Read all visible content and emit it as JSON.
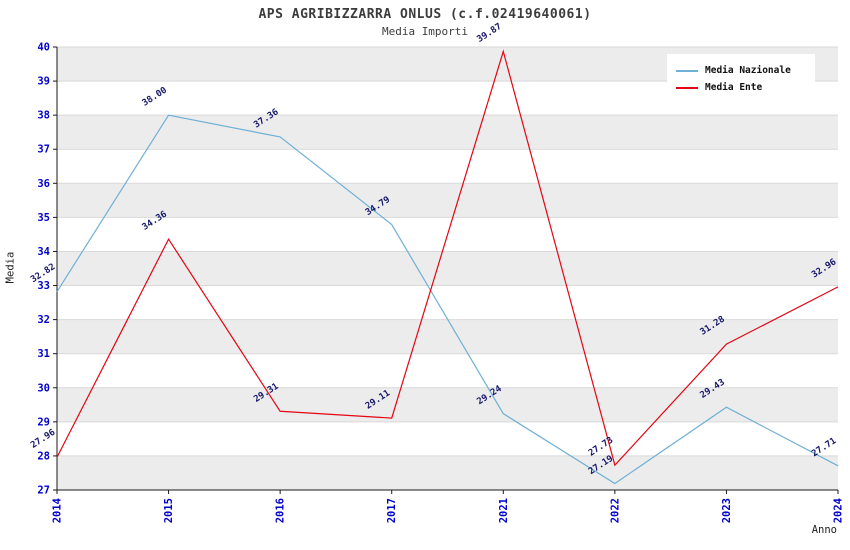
{
  "chart_data": {
    "type": "line",
    "title": "APS AGRIBIZZARRA ONLUS (c.f.02419640061)",
    "subtitle": "Media Importi",
    "xlabel": "Anno",
    "ylabel": "Media",
    "categories": [
      "2014",
      "2015",
      "2016",
      "2017",
      "2021",
      "2022",
      "2023",
      "2024"
    ],
    "series": [
      {
        "name": "Media Nazionale",
        "color": "#6fb0d6",
        "values": [
          32.82,
          38.0,
          37.36,
          34.79,
          29.24,
          27.19,
          29.43,
          27.71
        ]
      },
      {
        "name": "Media Ente",
        "color": "#e30613",
        "values": [
          27.96,
          34.36,
          29.31,
          29.11,
          39.87,
          27.73,
          31.28,
          32.96
        ]
      }
    ],
    "ylim": [
      27,
      40
    ],
    "ytick_step": 1,
    "grid": true,
    "legend_position": "top-right",
    "colors": {
      "band": "#ececec",
      "grid": "#d9d9d9",
      "axis": "#1a1a1a",
      "tick": "#0000cc",
      "value_label": "#17176b"
    }
  }
}
